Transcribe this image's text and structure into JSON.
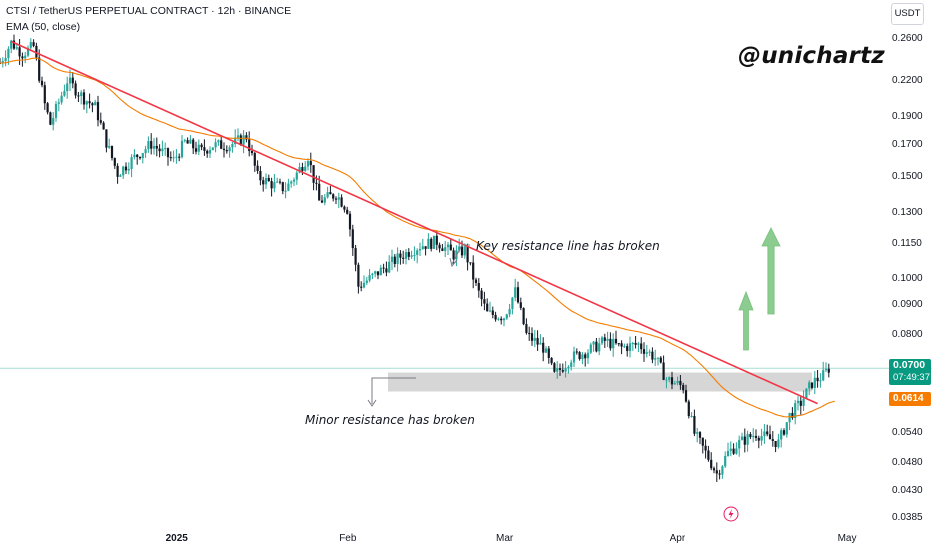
{
  "header": {
    "title": "CTSI / TetherUS PERPETUAL CONTRACT · 12h · BINANCE",
    "indicator": "EMA (50, close)"
  },
  "watermark": "@unichartz",
  "price_axis": {
    "unit": "USDT",
    "ticks": [
      "0.2600",
      "0.2200",
      "0.1900",
      "0.1700",
      "0.1500",
      "0.1300",
      "0.1150",
      "0.1000",
      "0.0900",
      "0.0800",
      "0.0540",
      "0.0480",
      "0.0430",
      "0.0385"
    ]
  },
  "time_axis": {
    "ticks": [
      "2025",
      "Feb",
      "Mar",
      "Apr",
      "May"
    ]
  },
  "price_badges": {
    "last_price": "0.0700",
    "countdown": "07:49:37",
    "ema_value": "0.0614"
  },
  "annotations": {
    "key_resistance": "Key resistance line has broken",
    "minor_resistance": "Minor resistance has broken"
  },
  "colors": {
    "up": "#26a69a",
    "down": "#131722",
    "trendline": "#f23645",
    "ema": "#f57c00",
    "zone": "#d6d6d6",
    "arrow": "#81c784",
    "last_price": "#089981",
    "ema_badge": "#f57c00"
  },
  "chart_data": {
    "type": "candlestick",
    "symbol": "CTSI / TetherUS PERPETUAL CONTRACT",
    "timeframe": "12h",
    "exchange": "BINANCE",
    "y_scale": "log",
    "ylim": [
      0.0375,
      0.28
    ],
    "x_range": [
      "2024-12-01",
      "2025-05-05"
    ],
    "series_points": [
      [
        "2024-12-01",
        0.236
      ],
      [
        "2024-12-03",
        0.256
      ],
      [
        "2024-12-05",
        0.245
      ],
      [
        "2024-12-07",
        0.252
      ],
      [
        "2024-12-09",
        0.2
      ],
      [
        "2024-12-10",
        0.185
      ],
      [
        "2024-12-13",
        0.22
      ],
      [
        "2024-12-16",
        0.205
      ],
      [
        "2024-12-18",
        0.198
      ],
      [
        "2024-12-20",
        0.172
      ],
      [
        "2024-12-22",
        0.152
      ],
      [
        "2024-12-25",
        0.162
      ],
      [
        "2024-12-28",
        0.171
      ],
      [
        "2025-01-01",
        0.16
      ],
      [
        "2025-01-03",
        0.172
      ],
      [
        "2025-01-06",
        0.166
      ],
      [
        "2025-01-08",
        0.17
      ],
      [
        "2025-01-11",
        0.17
      ],
      [
        "2025-01-14",
        0.176
      ],
      [
        "2025-01-16",
        0.15
      ],
      [
        "2025-01-19",
        0.145
      ],
      [
        "2025-01-21",
        0.143
      ],
      [
        "2025-01-23",
        0.152
      ],
      [
        "2025-01-25",
        0.163
      ],
      [
        "2025-01-27",
        0.136
      ],
      [
        "2025-01-30",
        0.14
      ],
      [
        "2025-02-01",
        0.132
      ],
      [
        "2025-02-03",
        0.097
      ],
      [
        "2025-02-05",
        0.1
      ],
      [
        "2025-02-08",
        0.105
      ],
      [
        "2025-02-11",
        0.11
      ],
      [
        "2025-02-14",
        0.114
      ],
      [
        "2025-02-17",
        0.116
      ],
      [
        "2025-02-20",
        0.11
      ],
      [
        "2025-02-22",
        0.112
      ],
      [
        "2025-02-24",
        0.097
      ],
      [
        "2025-02-26",
        0.087
      ],
      [
        "2025-03-01",
        0.086
      ],
      [
        "2025-03-03",
        0.095
      ],
      [
        "2025-03-05",
        0.08
      ],
      [
        "2025-03-08",
        0.076
      ],
      [
        "2025-03-10",
        0.068
      ],
      [
        "2025-03-13",
        0.073
      ],
      [
        "2025-03-16",
        0.075
      ],
      [
        "2025-03-19",
        0.078
      ],
      [
        "2025-03-22",
        0.076
      ],
      [
        "2025-03-25",
        0.077
      ],
      [
        "2025-03-28",
        0.073
      ],
      [
        "2025-03-30",
        0.067
      ],
      [
        "2025-04-02",
        0.065
      ],
      [
        "2025-04-04",
        0.054
      ],
      [
        "2025-04-06",
        0.05
      ],
      [
        "2025-04-08",
        0.046
      ],
      [
        "2025-04-10",
        0.05
      ],
      [
        "2025-04-12",
        0.052
      ],
      [
        "2025-04-15",
        0.054
      ],
      [
        "2025-04-17",
        0.053
      ],
      [
        "2025-04-19",
        0.052
      ],
      [
        "2025-04-21",
        0.058
      ],
      [
        "2025-04-23",
        0.061
      ],
      [
        "2025-04-25",
        0.066
      ],
      [
        "2025-04-27",
        0.068
      ],
      [
        "2025-04-28",
        0.07
      ]
    ],
    "last_price": 0.07,
    "ema_period": 50,
    "ema_last": 0.0614,
    "resistance_zone": [
      0.0638,
      0.0688
    ],
    "trendline": [
      [
        "2024-12-03",
        0.257
      ],
      [
        "2025-04-26",
        0.0608
      ]
    ],
    "grid": false,
    "legend": "top-left"
  }
}
